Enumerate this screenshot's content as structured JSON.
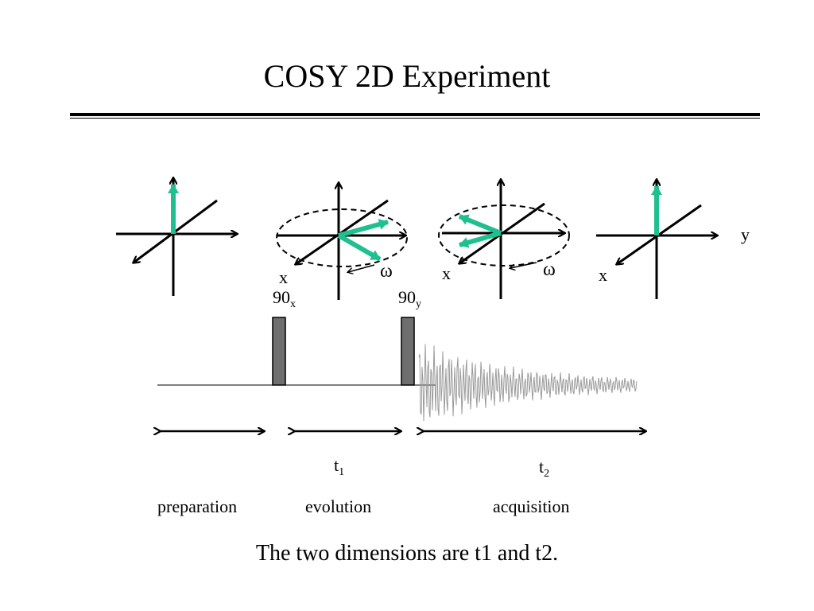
{
  "title": "COSY 2D Experiment",
  "colors": {
    "vector": "#1fbf8f",
    "pulse": "#6f6f6f",
    "fid": "#9a9a9a",
    "ink": "#000000"
  },
  "vector_frames": [
    {
      "axis_labels": {
        "x": "",
        "y": ""
      },
      "precession_label": ""
    },
    {
      "axis_labels": {
        "x": "x",
        "y": ""
      },
      "precession_label": "ω"
    },
    {
      "axis_labels": {
        "x": "x",
        "y": ""
      },
      "precession_label": "ω"
    },
    {
      "axis_labels": {
        "x": "x",
        "y": "y"
      },
      "precession_label": ""
    }
  ],
  "pulses": [
    {
      "angle": "90",
      "phase": "x"
    },
    {
      "angle": "90",
      "phase": "y"
    }
  ],
  "periods": [
    {
      "time": "",
      "time_sub": "",
      "label": "preparation"
    },
    {
      "time": "t",
      "time_sub": "1",
      "label": "evolution"
    },
    {
      "time": "t",
      "time_sub": "2",
      "label": "acquisition"
    }
  ],
  "footer": "The two dimensions are t1 and t2."
}
